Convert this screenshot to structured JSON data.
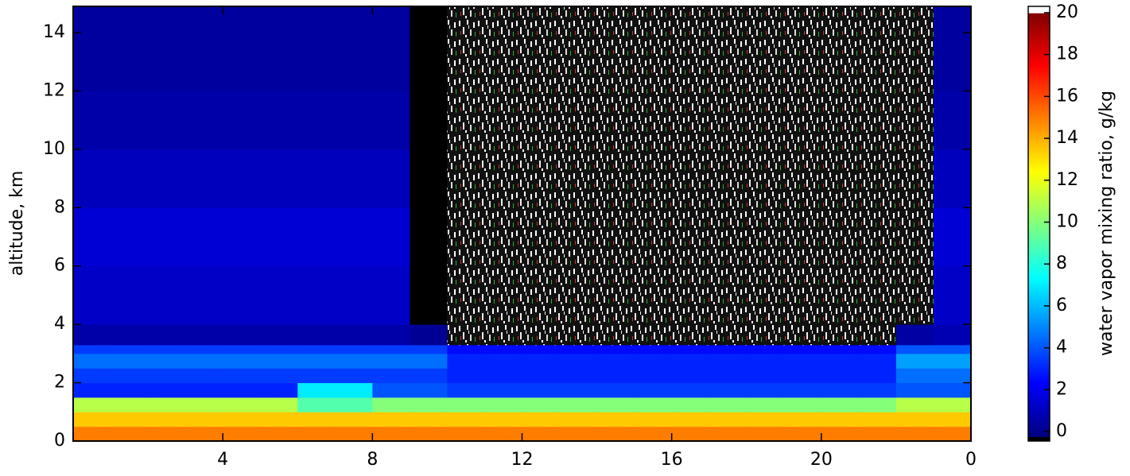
{
  "chart_data": {
    "type": "heatmap",
    "ylabel": "altitude, km",
    "colorbar_label": "water vapor mixing ratio, g/kg",
    "colormap": "jet",
    "under_color": "#000000",
    "over_color": "#ffffff",
    "clim": [
      -0.2,
      20
    ],
    "colorbar_lim": [
      -0.45,
      20.3
    ],
    "colorbar_ticks": [
      0,
      2,
      4,
      6,
      8,
      10,
      12,
      14,
      16,
      18,
      20
    ],
    "xlim": [
      0,
      24
    ],
    "ylim": [
      0,
      14.9
    ],
    "xticks": [
      4,
      8,
      12,
      16,
      20,
      {
        "value": 24,
        "label": "0"
      }
    ],
    "yticks": [
      0,
      2,
      4,
      6,
      8,
      10,
      12,
      14
    ],
    "x": [
      0,
      1,
      2,
      3,
      4,
      5,
      6,
      7,
      8,
      9,
      10,
      11,
      12,
      13,
      14,
      15,
      16,
      17,
      18,
      19,
      20,
      21,
      22,
      23,
      24
    ],
    "y": [
      0,
      0.5,
      1,
      1.5,
      2,
      2.5,
      3,
      3.3,
      4,
      6,
      8,
      10,
      12,
      14.9
    ],
    "z": [
      [
        15,
        15,
        15,
        15,
        15,
        15,
        15,
        15,
        15,
        15,
        15,
        15,
        15,
        15,
        15,
        15,
        15,
        15,
        15,
        15,
        15,
        15,
        15,
        15
      ],
      [
        13.5,
        13.5,
        13.5,
        13.5,
        13.5,
        13.5,
        13.5,
        13.5,
        13.5,
        13.5,
        13.5,
        13.5,
        13.5,
        13.5,
        13.5,
        13.5,
        13.5,
        13.5,
        13.5,
        13.5,
        13.5,
        13.5,
        13.5,
        13.5
      ],
      [
        11,
        11,
        11,
        11,
        11,
        11,
        9,
        9,
        10,
        10,
        10,
        10,
        10,
        10,
        10,
        10,
        10,
        10,
        10,
        10,
        10,
        10,
        11,
        11
      ],
      [
        3,
        3,
        3,
        3,
        3,
        3,
        7,
        7,
        4,
        4,
        3.5,
        3.5,
        3.5,
        3.5,
        3.5,
        3.5,
        3.5,
        3.5,
        3.5,
        3.5,
        3.5,
        3.5,
        4,
        4
      ],
      [
        3.5,
        3.5,
        3.5,
        3.5,
        3.5,
        3.5,
        3.5,
        3.5,
        3.5,
        3.5,
        3,
        3,
        3,
        3,
        3,
        3,
        3,
        3,
        3,
        3,
        3,
        3,
        4.5,
        4.5
      ],
      [
        4.5,
        4.5,
        4.5,
        4.5,
        4.5,
        4.5,
        4.5,
        4.5,
        4.5,
        4.5,
        3,
        3,
        3,
        3,
        3,
        3,
        3,
        3,
        3,
        3,
        3,
        3,
        5.5,
        5.5
      ],
      [
        3.5,
        3.5,
        3.5,
        3.5,
        3.5,
        3.5,
        3.5,
        3.5,
        3.5,
        3.5,
        2.5,
        2.5,
        2.5,
        2.5,
        2.5,
        2.5,
        2.5,
        2.5,
        2.5,
        2.5,
        2.5,
        2.5,
        4,
        4
      ],
      [
        0.6,
        0.6,
        0.6,
        0.6,
        0.6,
        0.6,
        0.6,
        0.6,
        0.6,
        0.2,
        null,
        null,
        null,
        null,
        null,
        null,
        null,
        null,
        null,
        null,
        null,
        null,
        0.5,
        0.8
      ],
      [
        1.2,
        1.2,
        1.2,
        1.2,
        1.2,
        1.2,
        1.2,
        1.2,
        1.2,
        -0.3,
        null,
        null,
        null,
        null,
        null,
        null,
        null,
        null,
        null,
        null,
        null,
        null,
        null,
        1.2
      ],
      [
        1.5,
        1.5,
        1.5,
        1.5,
        1.5,
        1.5,
        1.5,
        1.5,
        1.5,
        -0.3,
        null,
        null,
        null,
        null,
        null,
        null,
        null,
        null,
        null,
        null,
        null,
        null,
        null,
        1.5
      ],
      [
        1,
        1,
        1,
        1,
        1,
        1,
        1,
        1,
        1,
        -0.3,
        null,
        null,
        null,
        null,
        null,
        null,
        null,
        null,
        null,
        null,
        null,
        null,
        null,
        1
      ],
      [
        0.6,
        0.6,
        0.6,
        0.6,
        0.6,
        0.6,
        0.6,
        0.6,
        0.6,
        -0.3,
        null,
        null,
        null,
        null,
        null,
        null,
        null,
        null,
        null,
        null,
        null,
        null,
        null,
        0.6
      ],
      [
        0.4,
        0.4,
        0.4,
        0.4,
        0.4,
        0.4,
        0.4,
        0.4,
        0.4,
        -0.3,
        null,
        null,
        null,
        null,
        null,
        null,
        null,
        null,
        null,
        null,
        null,
        null,
        null,
        0.4
      ]
    ]
  }
}
